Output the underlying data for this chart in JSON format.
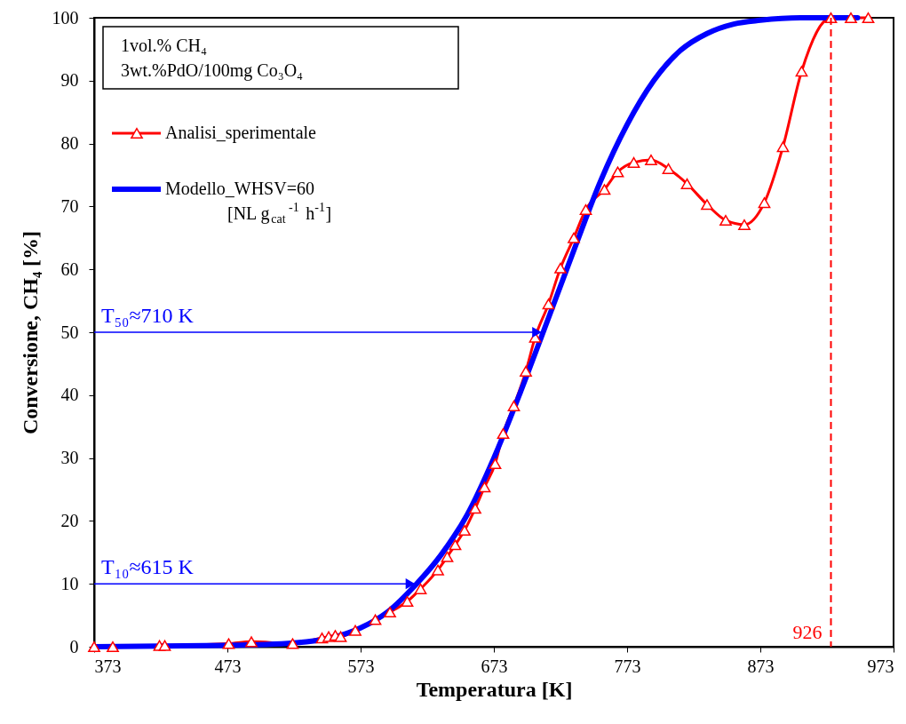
{
  "chart_data": {
    "type": "line",
    "xlabel": "Temperatura  [K]",
    "ylabel": "Conversione, CH₄ [%]",
    "xlim": [
      373,
      973
    ],
    "xticks": [
      373,
      473,
      573,
      673,
      773,
      873,
      973
    ],
    "ylim": [
      0,
      100
    ],
    "yticks": [
      0,
      10,
      20,
      30,
      40,
      50,
      60,
      70,
      80,
      90,
      100
    ],
    "grid": false,
    "legend": "top left",
    "series": [
      {
        "name": "Analisi_sperimentale",
        "color": "#ff0000",
        "marker": "triangle",
        "x": [
          373,
          387,
          422,
          426,
          474,
          491,
          522,
          544,
          549,
          554,
          558,
          569,
          584,
          595,
          608,
          618,
          631,
          638,
          644,
          651,
          659,
          666,
          674,
          680,
          688,
          697,
          704,
          714,
          723,
          733,
          742,
          756,
          766,
          778,
          791,
          804,
          818,
          833,
          847,
          861,
          876,
          890,
          904,
          926,
          941,
          954
        ],
        "values": [
          0,
          0,
          0.2,
          0.2,
          0.5,
          0.8,
          0.5,
          1.4,
          1.6,
          1.8,
          1.6,
          2.6,
          4.3,
          5.5,
          7.2,
          9.2,
          12.2,
          14.3,
          16.2,
          18.5,
          22,
          25.4,
          29.1,
          33.9,
          38.3,
          43.8,
          49.2,
          54.5,
          60.2,
          65,
          69.5,
          72.7,
          75.5,
          77,
          77.4,
          76,
          73.6,
          70.3,
          67.8,
          67.1,
          70.6,
          79.5,
          91.5,
          100,
          100,
          100
        ]
      },
      {
        "name": "Modello_WHSV=60 [NL g$_{cat}$$^{-1}$ h$^{-1}$]",
        "color": "#0000ff",
        "marker": "none",
        "x": [
          373,
          473,
          523,
          553,
          573,
          593,
          615,
          633,
          653,
          673,
          693,
          710,
          733,
          753,
          773,
          793,
          813,
          833,
          853,
          873,
          903,
          946
        ],
        "values": [
          0,
          0.2,
          0.6,
          1.5,
          3,
          5.5,
          10,
          14.5,
          21,
          30,
          40.5,
          50,
          63,
          74,
          83,
          90,
          94.8,
          97.5,
          99,
          99.6,
          100,
          100
        ]
      }
    ],
    "ref_lines": [
      {
        "axis": "x",
        "value": 926,
        "label": "926",
        "color": "#ff0000",
        "line_style": "dashed"
      }
    ],
    "annotations": [
      "1vol.% CH₄",
      "3wt.%PdO/100mg Co₃O₄",
      {
        "text": "T₅₀≈710 K",
        "x": 710,
        "y": 50
      },
      {
        "text": "T₁₀≈615 K",
        "x": 615,
        "y": 10
      }
    ]
  }
}
